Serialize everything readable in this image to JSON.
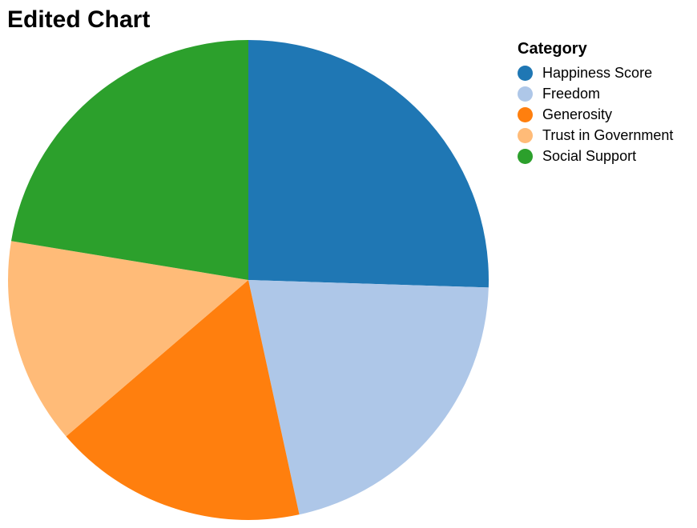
{
  "chart_data": {
    "type": "pie",
    "title": "Edited Chart",
    "legend_title": "Category",
    "legend_position": "top-right",
    "categories": [
      "Happiness Score",
      "Freedom",
      "Generosity",
      "Trust in Government",
      "Social Support"
    ],
    "values": [
      25.5,
      21.1,
      17.1,
      13.9,
      22.4
    ],
    "colors": [
      "#1f77b4",
      "#aec7e8",
      "#ff7f0e",
      "#ffbb78",
      "#2ca02c"
    ]
  }
}
